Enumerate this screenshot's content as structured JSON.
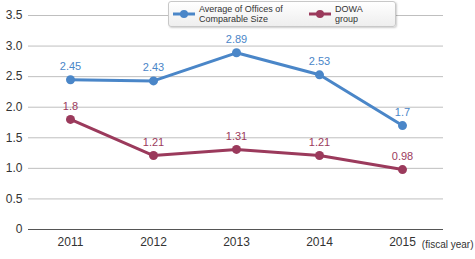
{
  "chart_data": {
    "type": "line",
    "categories": [
      "2011",
      "2012",
      "2013",
      "2014",
      "2015"
    ],
    "xlabel": "(fiscal year)",
    "series": [
      {
        "name": "Average of Offices of Comparable Size",
        "color": "#4a86c8",
        "marker": "circle",
        "line_style": "solid",
        "values": [
          2.45,
          2.43,
          2.89,
          2.53,
          1.7
        ]
      },
      {
        "name": "DOWA group",
        "color": "#9b3a5c",
        "marker": "circle",
        "line_style": "solid",
        "values": [
          1.8,
          1.21,
          1.31,
          1.21,
          0.98
        ]
      }
    ],
    "ylim": [
      0,
      3.5
    ],
    "yticks": [
      0,
      0.5,
      {
        "value": 1,
        "label": "1.0"
      },
      1.5,
      {
        "value": 2,
        "label": "2.0"
      },
      2.5,
      {
        "value": 3,
        "label": "3.0"
      },
      3.5
    ],
    "grid": true,
    "data_labels": true,
    "legend": "top"
  }
}
